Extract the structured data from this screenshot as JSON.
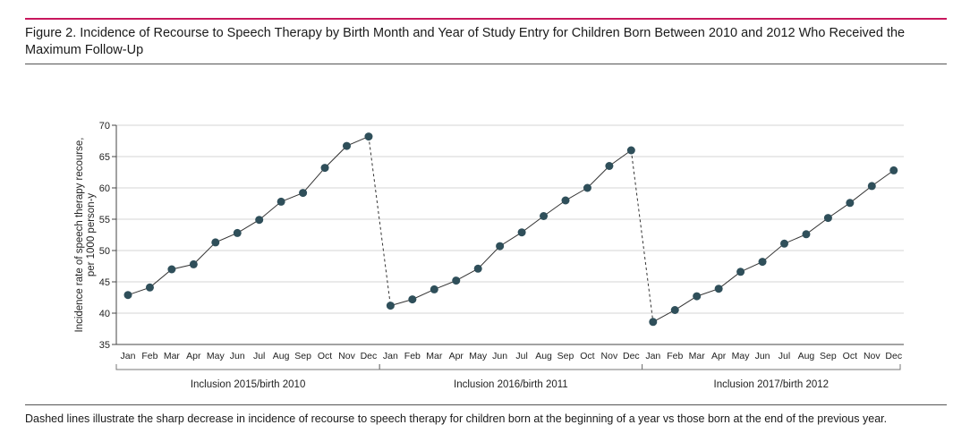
{
  "figure": {
    "title": "Figure 2. Incidence of Recourse to Speech Therapy by Birth Month and Year of Study Entry for Children Born Between 2010 and 2012 Who Received the Maximum Follow-Up",
    "footnote": "Dashed lines illustrate the sharp decrease in incidence of recourse to speech therapy for children born at the beginning of a year vs those born at the end of the previous year.",
    "accent_color": "#c8175d",
    "marker_color": "#2f4f5a"
  },
  "chart_data": {
    "type": "line",
    "title": "",
    "ylabel": [
      "Incidence rate of speech therapy recourse,",
      "per 1000 person-y"
    ],
    "xlabel": "",
    "ylim": [
      35,
      70
    ],
    "yticks": [
      35,
      40,
      45,
      50,
      55,
      60,
      65,
      70
    ],
    "grid": "horizontal",
    "months": [
      "Jan",
      "Feb",
      "Mar",
      "Apr",
      "May",
      "Jun",
      "Jul",
      "Aug",
      "Sep",
      "Oct",
      "Nov",
      "Dec"
    ],
    "groups": [
      {
        "label": "Inclusion 2015/birth 2010",
        "values": [
          42.9,
          44.1,
          47.0,
          47.8,
          51.3,
          52.8,
          54.9,
          57.8,
          59.2,
          63.2,
          66.7,
          68.2
        ]
      },
      {
        "label": "Inclusion 2016/birth 2011",
        "values": [
          41.2,
          42.2,
          43.8,
          45.2,
          47.1,
          50.7,
          52.9,
          55.5,
          58.0,
          60.0,
          63.5,
          66.0
        ]
      },
      {
        "label": "Inclusion 2017/birth 2012",
        "values": [
          38.6,
          40.5,
          42.7,
          43.9,
          46.6,
          48.2,
          51.1,
          52.6,
          55.2,
          57.6,
          60.3,
          62.8
        ]
      }
    ],
    "dashed_connectors": "year-end to next year-start"
  }
}
